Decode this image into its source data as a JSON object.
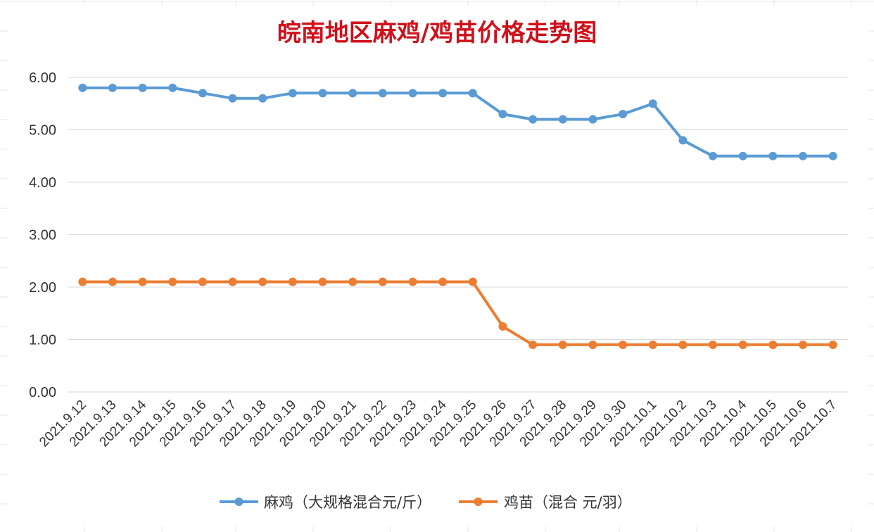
{
  "chart_data": {
    "type": "line",
    "title": "皖南地区麻鸡/鸡苗价格走势图",
    "xlabel": "",
    "ylabel": "",
    "ylim": [
      0,
      6
    ],
    "yticks": [
      "0.00",
      "1.00",
      "2.00",
      "3.00",
      "4.00",
      "5.00",
      "6.00"
    ],
    "grid": true,
    "legend_position": "bottom",
    "categories": [
      "2021.9.12",
      "2021.9.13",
      "2021.9.14",
      "2021.9.15",
      "2021.9.16",
      "2021.9.17",
      "2021.9.18",
      "2021.9.19",
      "2021.9.20",
      "2021.9.21",
      "2021.9.22",
      "2021.9.23",
      "2021.9.24",
      "2021.9.25",
      "2021.9.26",
      "2021.9.27",
      "2021.9.28",
      "2021.9.29",
      "2021.9.30",
      "2021.10.1",
      "2021.10.2",
      "2021.10.3",
      "2021.10.4",
      "2021.10.5",
      "2021.10.6",
      "2021.10.7"
    ],
    "series": [
      {
        "name": "麻鸡（大规格混合元/斤）",
        "color": "#5b9bd5",
        "values": [
          5.8,
          5.8,
          5.8,
          5.8,
          5.7,
          5.6,
          5.6,
          5.7,
          5.7,
          5.7,
          5.7,
          5.7,
          5.7,
          5.7,
          5.3,
          5.2,
          5.2,
          5.2,
          5.3,
          5.5,
          4.8,
          4.5,
          4.5,
          4.5,
          4.5,
          4.5
        ]
      },
      {
        "name": "鸡苗（混合 元/羽）",
        "color": "#ed7d31",
        "values": [
          2.1,
          2.1,
          2.1,
          2.1,
          2.1,
          2.1,
          2.1,
          2.1,
          2.1,
          2.1,
          2.1,
          2.1,
          2.1,
          2.1,
          1.25,
          0.9,
          0.9,
          0.9,
          0.9,
          0.9,
          0.9,
          0.9,
          0.9,
          0.9,
          0.9,
          0.9
        ]
      }
    ]
  }
}
